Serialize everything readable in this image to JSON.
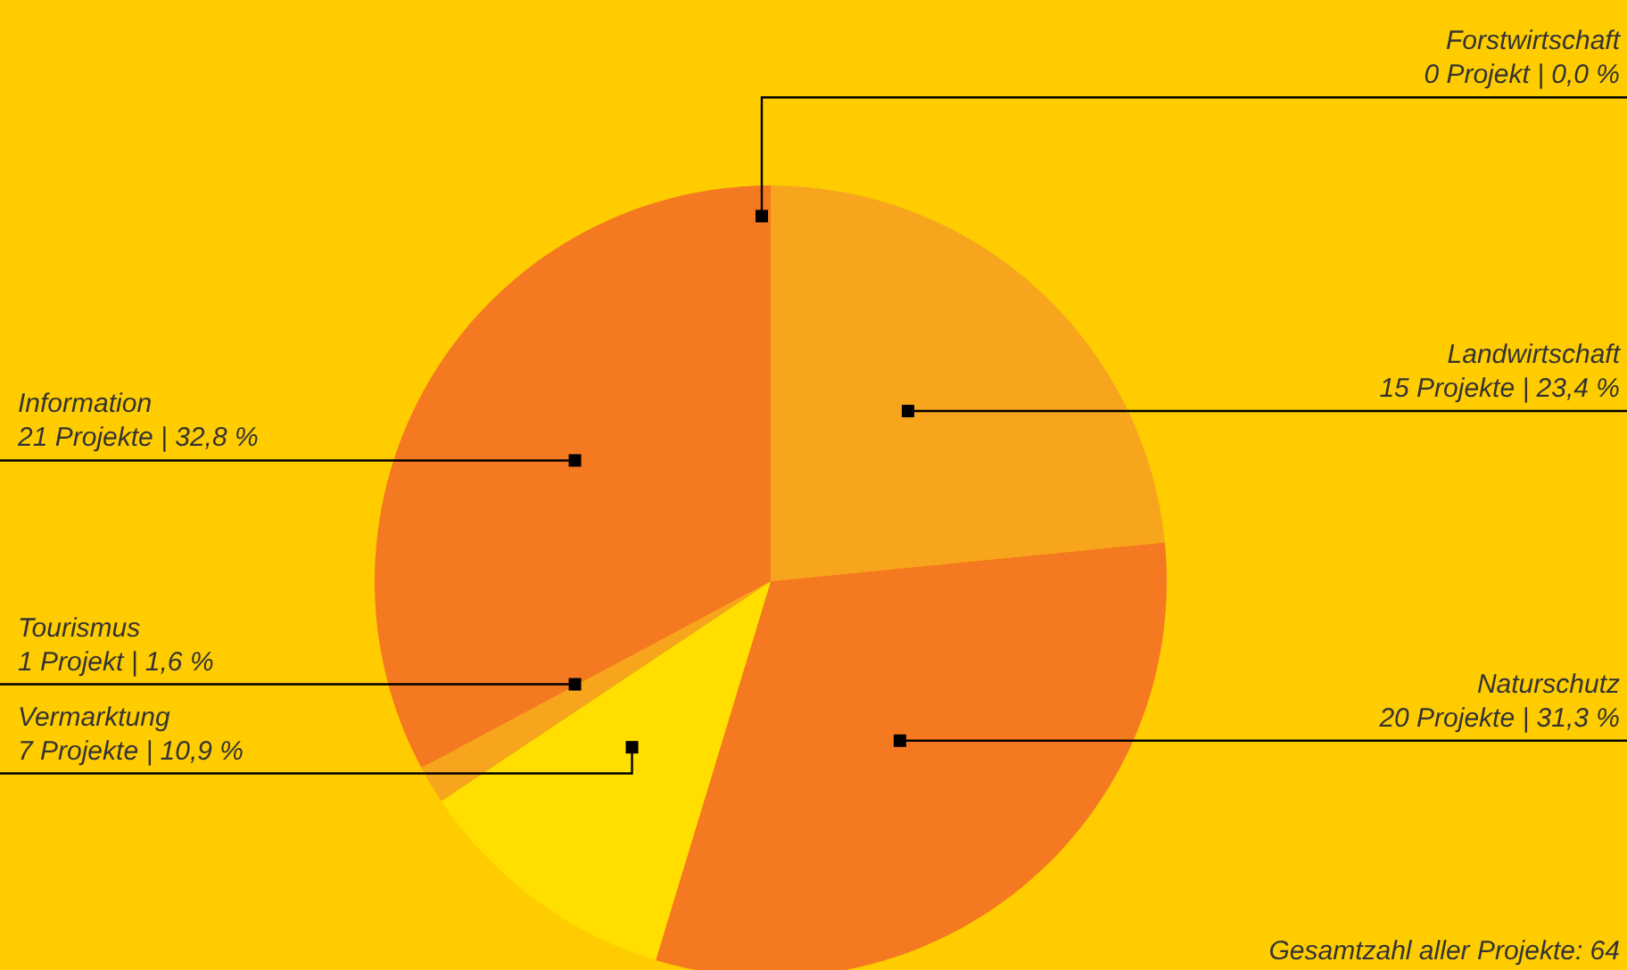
{
  "chart_data": {
    "type": "pie",
    "categories": [
      "Forstwirtschaft",
      "Landwirtschaft",
      "Naturschutz",
      "Vermarktung",
      "Tourismus",
      "Information"
    ],
    "values": [
      0,
      15,
      20,
      7,
      1,
      21
    ],
    "value_labels": [
      "0 Projekt | 0,0 %",
      "15 Projekte | 23,4 %",
      "20 Projekte | 31,3 %",
      "7 Projekte | 10,9 %",
      "1 Projekt | 1,6 %",
      "21 Projekte | 32,8 %"
    ],
    "colors": [
      "#f7a51c",
      "#f7a51c",
      "#f47920",
      "#ffde00",
      "#f7a51c",
      "#f47920"
    ],
    "annotations": [
      "Gesamtzahl aller Projekte: 64"
    ]
  }
}
